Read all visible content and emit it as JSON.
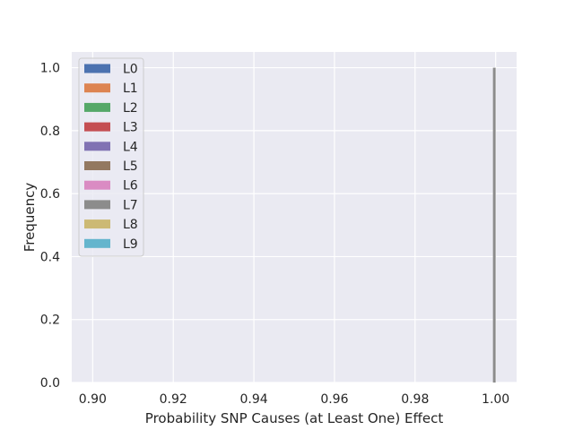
{
  "chart_data": {
    "type": "bar",
    "title": "",
    "xlabel": "Probability SNP Causes (at Least One) Effect",
    "ylabel": "Frequency",
    "xlim": [
      0.8948,
      1.0052
    ],
    "ylim": [
      0.0,
      1.05
    ],
    "xticks": [
      0.9,
      0.92,
      0.94,
      0.96,
      0.98,
      1.0
    ],
    "xtick_labels": [
      "0.90",
      "0.92",
      "0.94",
      "0.96",
      "0.98",
      "1.00"
    ],
    "yticks": [
      0.0,
      0.2,
      0.4,
      0.6,
      0.8,
      1.0
    ],
    "ytick_labels": [
      "0.0",
      "0.2",
      "0.4",
      "0.6",
      "0.8",
      "1.0"
    ],
    "grid": true,
    "legend_position": "top-left",
    "series": [
      {
        "name": "L0",
        "color": "#4c72b0",
        "bins": []
      },
      {
        "name": "L1",
        "color": "#dd8452",
        "bins": []
      },
      {
        "name": "L2",
        "color": "#55a868",
        "bins": []
      },
      {
        "name": "L3",
        "color": "#c44e52",
        "bins": []
      },
      {
        "name": "L4",
        "color": "#8172b3",
        "bins": []
      },
      {
        "name": "L5",
        "color": "#937860",
        "bins": []
      },
      {
        "name": "L6",
        "color": "#da8bc3",
        "bins": []
      },
      {
        "name": "L7",
        "color": "#8c8c8c",
        "bins": [
          {
            "x0": 0.9995,
            "x1": 1.0,
            "value": 1.0
          }
        ]
      },
      {
        "name": "L8",
        "color": "#ccb974",
        "bins": []
      },
      {
        "name": "L9",
        "color": "#64b5cd",
        "bins": []
      }
    ]
  }
}
